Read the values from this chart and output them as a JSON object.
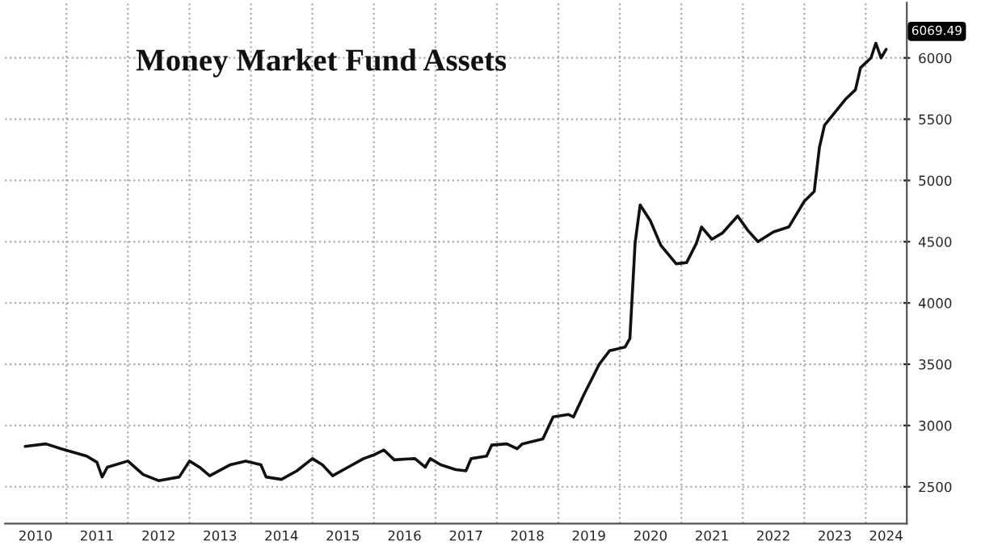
{
  "chart_data": {
    "type": "line",
    "title": "Money Market Fund Assets",
    "x": [
      "2010-05",
      "2010-09",
      "2010-12",
      "2011-05",
      "2011-07",
      "2011-08",
      "2011-09",
      "2012-01",
      "2012-04",
      "2012-07",
      "2012-11",
      "2013-01",
      "2013-03",
      "2013-05",
      "2013-09",
      "2013-12",
      "2014-03",
      "2014-04",
      "2014-07",
      "2014-10",
      "2015-01",
      "2015-03",
      "2015-05",
      "2015-08",
      "2015-11",
      "2016-01",
      "2016-03",
      "2016-05",
      "2016-09",
      "2016-11",
      "2016-12",
      "2017-02",
      "2017-05",
      "2017-07",
      "2017-08",
      "2017-11",
      "2017-12",
      "2018-03",
      "2018-05",
      "2018-06",
      "2018-10",
      "2018-12",
      "2019-03",
      "2019-04",
      "2019-06",
      "2019-09",
      "2019-11",
      "2020-02",
      "2020-03",
      "2020-04",
      "2020-05",
      "2020-07",
      "2020-09",
      "2020-12",
      "2021-02",
      "2021-04",
      "2021-05",
      "2021-07",
      "2021-09",
      "2021-12",
      "2022-02",
      "2022-04",
      "2022-07",
      "2022-10",
      "2023-01",
      "2023-03",
      "2023-04",
      "2023-05",
      "2023-09",
      "2023-11",
      "2023-12",
      "2024-02",
      "2024-03",
      "2024-04",
      "2024-05"
    ],
    "series": [
      {
        "color": "#111111",
        "values": [
          2830,
          2850,
          2810,
          2750,
          2700,
          2580,
          2660,
          2710,
          2600,
          2550,
          2580,
          2710,
          2660,
          2590,
          2680,
          2710,
          2680,
          2580,
          2560,
          2630,
          2730,
          2680,
          2590,
          2660,
          2730,
          2760,
          2800,
          2720,
          2730,
          2660,
          2730,
          2680,
          2640,
          2630,
          2730,
          2750,
          2840,
          2850,
          2810,
          2850,
          2890,
          3070,
          3090,
          3070,
          3250,
          3500,
          3610,
          3640,
          3710,
          4490,
          4800,
          4670,
          4470,
          4320,
          4330,
          4490,
          4620,
          4520,
          4570,
          4710,
          4590,
          4500,
          4580,
          4620,
          4830,
          4910,
          5270,
          5450,
          5660,
          5740,
          5920,
          6000,
          6120,
          6000,
          6069.49
        ]
      }
    ],
    "annotations": [
      {
        "text": "6069.49",
        "x": "2024-05",
        "y": 6069.49
      }
    ],
    "xlim": [
      "2010-01-01",
      "2024-09-01"
    ],
    "xticks": [
      {
        "value": "2010-07-01",
        "label": "2010"
      },
      {
        "value": "2011-07-01",
        "label": "2011"
      },
      {
        "value": "2012-07-01",
        "label": "2012"
      },
      {
        "value": "2013-07-01",
        "label": "2013"
      },
      {
        "value": "2014-07-01",
        "label": "2014"
      },
      {
        "value": "2015-07-01",
        "label": "2015"
      },
      {
        "value": "2016-07-01",
        "label": "2016"
      },
      {
        "value": "2017-07-01",
        "label": "2017"
      },
      {
        "value": "2018-07-01",
        "label": "2018"
      },
      {
        "value": "2019-07-01",
        "label": "2019"
      },
      {
        "value": "2020-07-01",
        "label": "2020"
      },
      {
        "value": "2021-07-01",
        "label": "2021"
      },
      {
        "value": "2022-07-01",
        "label": "2022"
      },
      {
        "value": "2023-07-01",
        "label": "2023"
      },
      {
        "value": "2024-05-01",
        "label": "2024"
      },
      {
        "value": "2011-01-01",
        "label": null
      },
      {
        "value": "2012-01-01",
        "label": null
      },
      {
        "value": "2013-01-01",
        "label": null
      },
      {
        "value": "2014-01-01",
        "label": null
      },
      {
        "value": "2015-01-01",
        "label": null
      },
      {
        "value": "2016-01-01",
        "label": null
      },
      {
        "value": "2017-01-01",
        "label": null
      },
      {
        "value": "2018-01-01",
        "label": null
      },
      {
        "value": "2019-01-01",
        "label": null
      },
      {
        "value": "2020-01-01",
        "label": null
      },
      {
        "value": "2021-01-01",
        "label": null
      },
      {
        "value": "2022-01-01",
        "label": null
      },
      {
        "value": "2023-01-01",
        "label": null
      },
      {
        "value": "2024-01-01",
        "label": null
      }
    ],
    "ylim": [
      2200,
      6450
    ],
    "yticks": [
      2500,
      3000,
      3500,
      4000,
      4500,
      5000,
      5500,
      6000
    ],
    "grid": true,
    "line_style": "solid",
    "marker": "none"
  }
}
